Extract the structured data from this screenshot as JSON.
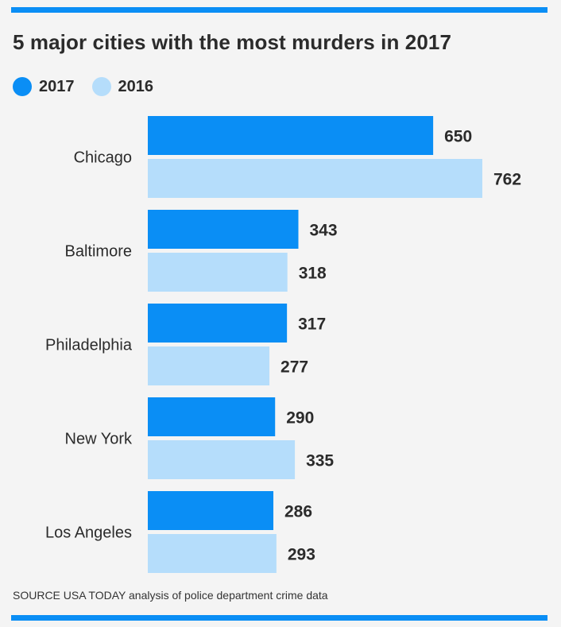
{
  "chart_data": {
    "type": "bar",
    "orientation": "horizontal",
    "title": "5 major cities with the most murders in 2017",
    "categories": [
      "Chicago",
      "Baltimore",
      "Philadelphia",
      "New York",
      "Los Angeles"
    ],
    "series": [
      {
        "name": "2017",
        "color": "#0a8ef5",
        "values": [
          650,
          343,
          317,
          290,
          286
        ]
      },
      {
        "name": "2016",
        "color": "#b5ddfb",
        "values": [
          762,
          318,
          277,
          335,
          293
        ]
      }
    ],
    "xlim": [
      0,
      762
    ],
    "grid": false,
    "legend": "top-left",
    "source": "SOURCE USA TODAY analysis of police department crime data"
  },
  "colors": {
    "rule": "#0a8ef5",
    "text": "#2b2b2b",
    "background": "#f4f4f4"
  }
}
